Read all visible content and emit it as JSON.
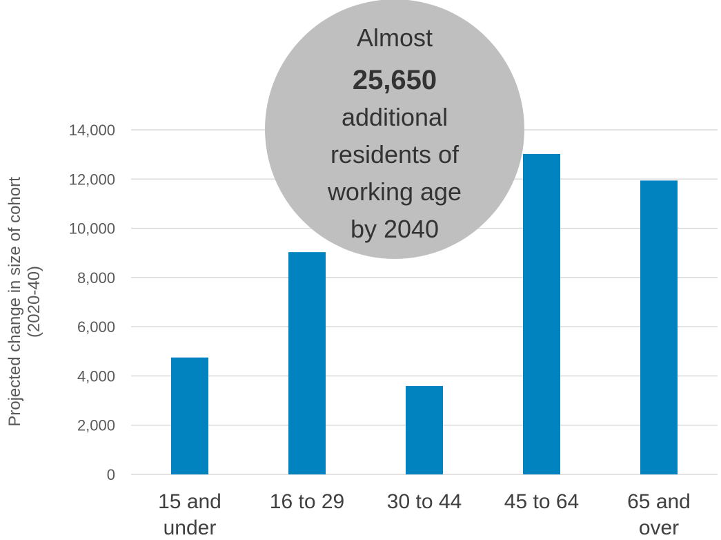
{
  "chart_data": {
    "type": "bar",
    "categories": [
      [
        "15 and",
        "under"
      ],
      [
        "16 to 29"
      ],
      [
        "30 to 44"
      ],
      [
        "45 to 64"
      ],
      [
        "65 and",
        "over"
      ]
    ],
    "values": [
      4750,
      9030,
      3590,
      13020,
      11940
    ],
    "ylabel": [
      "Projected change in size of cohort",
      "(2020-40)"
    ],
    "ylim": [
      0,
      14000
    ],
    "y_ticks": [
      "0",
      "2,000",
      "4,000",
      "6,000",
      "8,000",
      "10,000",
      "12,000",
      "14,000"
    ],
    "y_tick_step": 2000,
    "grid": true,
    "bar_color": "#0083BE",
    "grid_color": "#D9D9D9",
    "annotation": {
      "lines": [
        "Almost",
        "25,650",
        "additional",
        "residents of",
        "working age",
        "by 2040"
      ],
      "bold_line_index": 1,
      "fill": "#BFBFBF"
    }
  }
}
